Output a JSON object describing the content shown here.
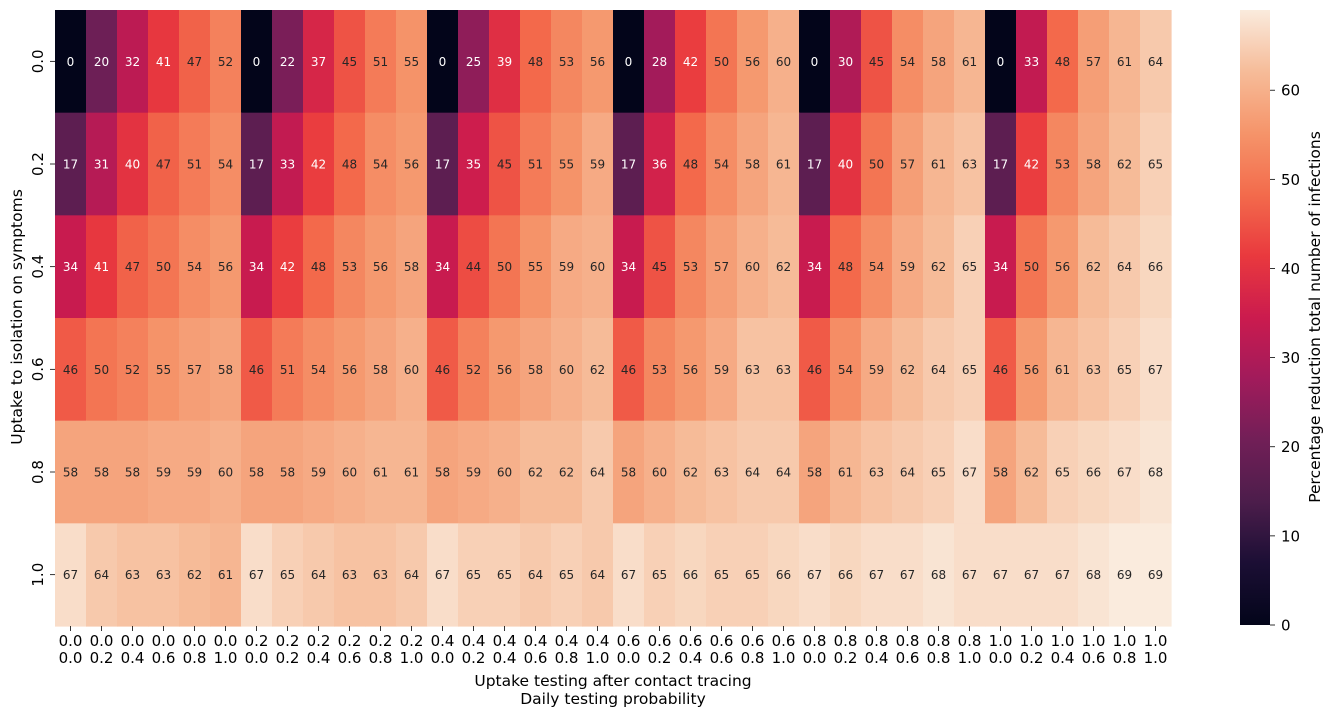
{
  "chart_data": {
    "type": "heatmap",
    "title": "",
    "xlabel_line1": "Uptake testing after contact tracing",
    "xlabel_line2": "Daily testing probability",
    "ylabel": "Uptake to isolation on symptoms",
    "colorbar_label": "Percentage reduction total number of infections",
    "colorbar_range": [
      0,
      69
    ],
    "colorbar_ticks": [
      "0",
      "10",
      "20",
      "30",
      "40",
      "50",
      "60"
    ],
    "colorbar_tick_values": [
      0,
      10,
      20,
      30,
      40,
      50,
      60
    ],
    "colormap": "rocket",
    "y_categories": [
      "0.0",
      "0.2",
      "0.4",
      "0.6",
      "0.8",
      "1.0"
    ],
    "x_categories": [
      [
        "0.0",
        "0.0"
      ],
      [
        "0.0",
        "0.2"
      ],
      [
        "0.0",
        "0.4"
      ],
      [
        "0.0",
        "0.6"
      ],
      [
        "0.0",
        "0.8"
      ],
      [
        "0.0",
        "1.0"
      ],
      [
        "0.2",
        "0.0"
      ],
      [
        "0.2",
        "0.2"
      ],
      [
        "0.2",
        "0.4"
      ],
      [
        "0.2",
        "0.6"
      ],
      [
        "0.2",
        "0.8"
      ],
      [
        "0.2",
        "1.0"
      ],
      [
        "0.4",
        "0.0"
      ],
      [
        "0.4",
        "0.2"
      ],
      [
        "0.4",
        "0.4"
      ],
      [
        "0.4",
        "0.6"
      ],
      [
        "0.4",
        "0.8"
      ],
      [
        "0.4",
        "1.0"
      ],
      [
        "0.6",
        "0.0"
      ],
      [
        "0.6",
        "0.2"
      ],
      [
        "0.6",
        "0.4"
      ],
      [
        "0.6",
        "0.6"
      ],
      [
        "0.6",
        "0.8"
      ],
      [
        "0.6",
        "1.0"
      ],
      [
        "0.8",
        "0.0"
      ],
      [
        "0.8",
        "0.2"
      ],
      [
        "0.8",
        "0.4"
      ],
      [
        "0.8",
        "0.6"
      ],
      [
        "0.8",
        "0.8"
      ],
      [
        "0.8",
        "1.0"
      ],
      [
        "1.0",
        "0.0"
      ],
      [
        "1.0",
        "0.2"
      ],
      [
        "1.0",
        "0.4"
      ],
      [
        "1.0",
        "0.6"
      ],
      [
        "1.0",
        "0.8"
      ],
      [
        "1.0",
        "1.0"
      ]
    ],
    "values": [
      [
        0,
        20,
        32,
        41,
        47,
        52,
        0,
        22,
        37,
        45,
        51,
        55,
        0,
        25,
        39,
        48,
        53,
        56,
        0,
        28,
        42,
        50,
        56,
        60,
        0,
        30,
        45,
        54,
        58,
        61,
        0,
        33,
        48,
        57,
        61,
        64
      ],
      [
        17,
        31,
        40,
        47,
        51,
        54,
        17,
        33,
        42,
        48,
        54,
        56,
        17,
        35,
        45,
        51,
        55,
        59,
        17,
        36,
        48,
        54,
        58,
        61,
        17,
        40,
        50,
        57,
        61,
        63,
        17,
        42,
        53,
        58,
        62,
        65
      ],
      [
        34,
        41,
        47,
        50,
        54,
        56,
        34,
        42,
        48,
        53,
        56,
        58,
        34,
        44,
        50,
        55,
        59,
        60,
        34,
        45,
        53,
        57,
        60,
        62,
        34,
        48,
        54,
        59,
        62,
        65,
        34,
        50,
        56,
        62,
        64,
        66
      ],
      [
        46,
        50,
        52,
        55,
        57,
        58,
        46,
        51,
        54,
        56,
        58,
        60,
        46,
        52,
        56,
        58,
        60,
        62,
        46,
        53,
        56,
        59,
        63,
        63,
        46,
        54,
        59,
        62,
        64,
        65,
        46,
        56,
        61,
        63,
        65,
        67
      ],
      [
        58,
        58,
        58,
        59,
        59,
        60,
        58,
        58,
        59,
        60,
        61,
        61,
        58,
        59,
        60,
        62,
        62,
        64,
        58,
        60,
        62,
        63,
        64,
        64,
        58,
        61,
        63,
        64,
        65,
        67,
        58,
        62,
        65,
        66,
        67,
        68
      ],
      [
        67,
        64,
        63,
        63,
        62,
        61,
        67,
        65,
        64,
        63,
        63,
        64,
        67,
        65,
        65,
        64,
        65,
        64,
        67,
        65,
        66,
        65,
        65,
        66,
        67,
        66,
        67,
        67,
        68,
        67,
        67,
        67,
        67,
        68,
        69,
        69
      ]
    ]
  }
}
